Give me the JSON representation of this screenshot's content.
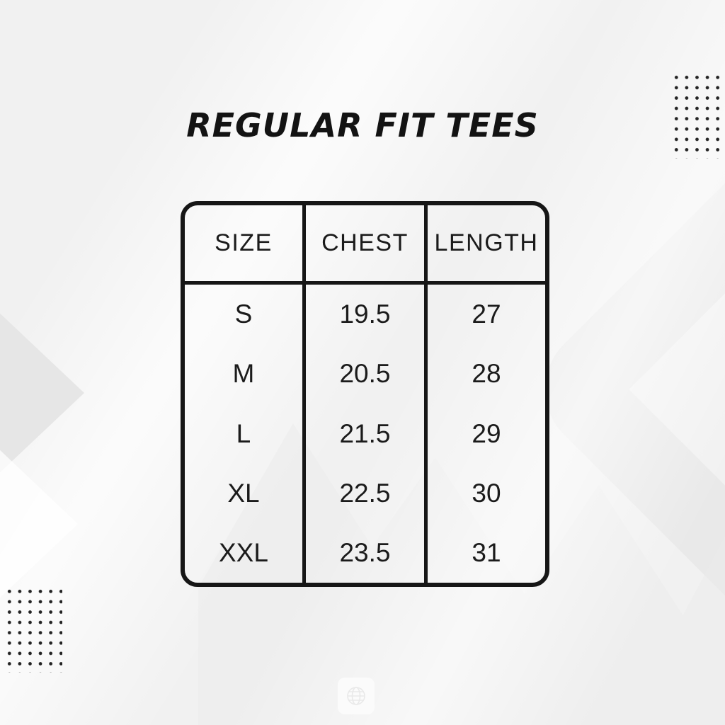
{
  "title": "REGULAR FIT TEES",
  "table": {
    "columns": [
      "SIZE",
      "CHEST",
      "LENGTH"
    ],
    "rows": [
      {
        "size": "S",
        "chest": "19.5",
        "length": "27"
      },
      {
        "size": "M",
        "chest": "20.5",
        "length": "28"
      },
      {
        "size": "L",
        "chest": "21.5",
        "length": "29"
      },
      {
        "size": "XL",
        "chest": "22.5",
        "length": "30"
      },
      {
        "size": "XXL",
        "chest": "23.5",
        "length": "31"
      }
    ]
  },
  "colors": {
    "background": "#f1f1f1",
    "table_border": "#161616",
    "text": "#1b1b1b",
    "dots": "#232323",
    "decor_shapes": "#e8e8e8"
  },
  "icons": {
    "watermark": "globe-icon"
  }
}
